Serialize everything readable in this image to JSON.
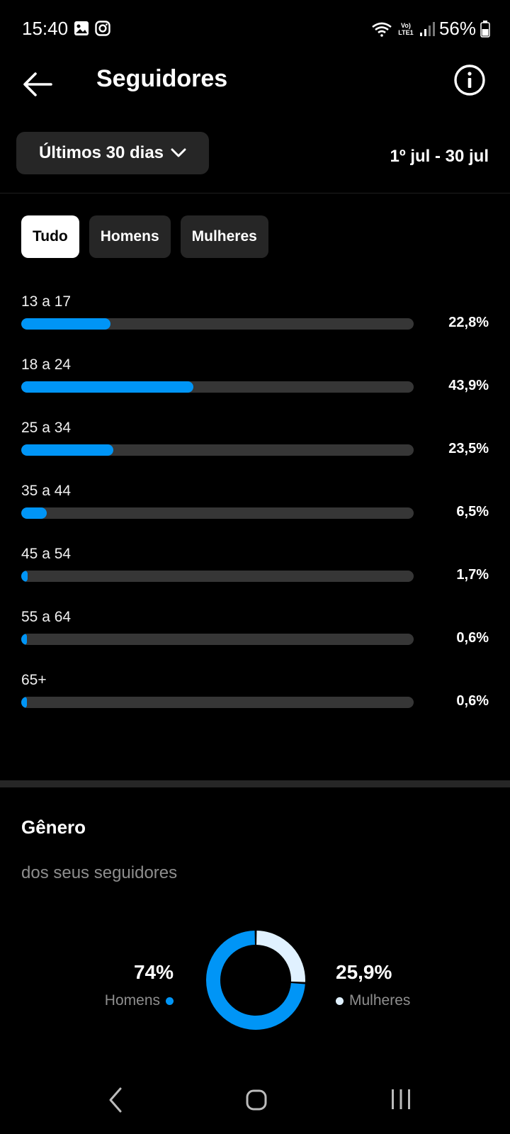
{
  "status_bar": {
    "time": "15:40",
    "carrier": "Vo) LTE1",
    "battery": "56%"
  },
  "header": {
    "title": "Seguidores"
  },
  "filter": {
    "period_label": "Últimos 30 dias",
    "date_range": "1º jul - 30 jul"
  },
  "tabs": [
    {
      "label": "Tudo",
      "active": true
    },
    {
      "label": "Homens",
      "active": false
    },
    {
      "label": "Mulheres",
      "active": false
    }
  ],
  "age_ranges": [
    {
      "label": "13 a 17",
      "value": 22.8,
      "display": "22,8%"
    },
    {
      "label": "18 a 24",
      "value": 43.9,
      "display": "43,9%"
    },
    {
      "label": "25 a 34",
      "value": 23.5,
      "display": "23,5%"
    },
    {
      "label": "35 a 44",
      "value": 6.5,
      "display": "6,5%"
    },
    {
      "label": "45 a 54",
      "value": 1.7,
      "display": "1,7%"
    },
    {
      "label": "55 a 64",
      "value": 0.6,
      "display": "0,6%"
    },
    {
      "label": "65+",
      "value": 0.6,
      "display": "0,6%"
    }
  ],
  "gender": {
    "title": "Gênero",
    "subtitle": "dos seus seguidores",
    "men": {
      "label": "Homens",
      "value": 74,
      "display": "74%",
      "color": "#0095f6"
    },
    "women": {
      "label": "Mulheres",
      "value": 25.9,
      "display": "25,9%",
      "color": "#e0f1ff"
    }
  },
  "colors": {
    "accent": "#0095f6",
    "track": "#363636",
    "chip_bg": "#262626"
  }
}
